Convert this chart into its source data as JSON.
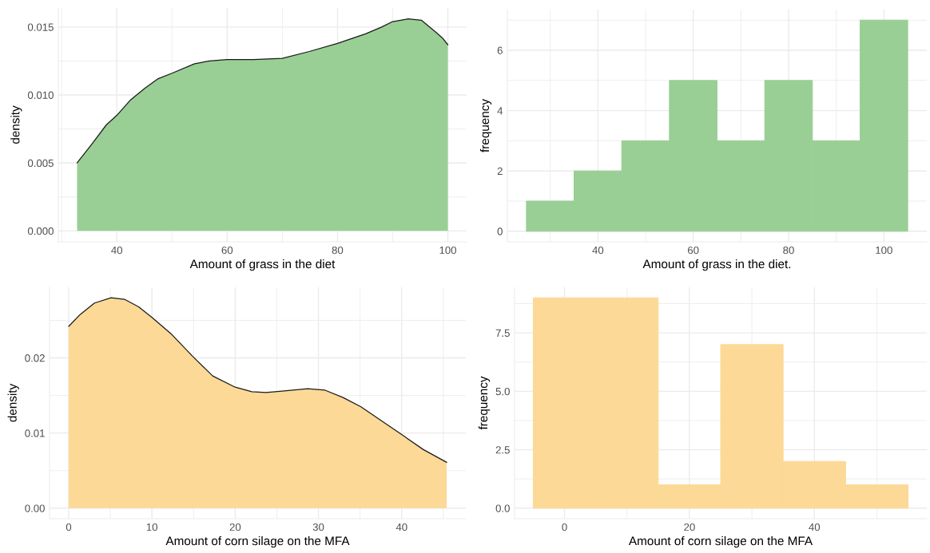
{
  "chart_data": [
    {
      "type": "area",
      "xlabel": "Amount of grass in the diet",
      "ylabel": "density",
      "color": "#99cf95",
      "x": [
        32.8,
        35.5,
        38.1,
        40,
        42.4,
        45.1,
        47.5,
        50,
        54.1,
        56.8,
        60,
        64.8,
        70,
        74.9,
        80,
        85.1,
        88,
        90,
        92.8,
        95.2,
        97.9,
        99,
        100
      ],
      "values": [
        0.005,
        0.0064,
        0.0078,
        0.0085,
        0.0096,
        0.0105,
        0.0112,
        0.0116,
        0.0123,
        0.0125,
        0.0126,
        0.0126,
        0.0127,
        0.0132,
        0.0138,
        0.0145,
        0.015,
        0.0154,
        0.0156,
        0.0155,
        0.0146,
        0.0142,
        0.0137
      ],
      "xlim": [
        29.4,
        103.4
      ],
      "ylim": [
        -0.0008,
        0.0164
      ],
      "xticks": [
        {
          "value": 30,
          "label": null
        },
        40,
        {
          "value": 50,
          "label": null
        },
        60,
        {
          "value": 70,
          "label": null
        },
        80,
        {
          "value": 90,
          "label": null
        },
        100
      ],
      "yticks": [
        {
          "value": 0,
          "label": "0.000"
        },
        {
          "value": 0.0025,
          "label": null
        },
        {
          "value": 0.005,
          "label": "0.005"
        },
        {
          "value": 0.0075,
          "label": null
        },
        {
          "value": 0.01,
          "label": "0.010"
        },
        {
          "value": 0.0125,
          "label": null
        },
        {
          "value": 0.015,
          "label": "0.015"
        }
      ],
      "grid": true
    },
    {
      "type": "histogram",
      "xlabel": "Amount of grass in the diet.",
      "ylabel": "frequency",
      "color": "#99cf95",
      "bins": [
        25,
        35,
        45,
        55,
        65,
        75,
        85,
        95,
        105
      ],
      "values": [
        1,
        2,
        3,
        5,
        3,
        5,
        3,
        7
      ],
      "xlim": [
        21,
        109
      ],
      "ylim": [
        -0.35,
        7.35
      ],
      "xticks": [
        {
          "value": 30,
          "label": null
        },
        40,
        {
          "value": 50,
          "label": null
        },
        60,
        {
          "value": 70,
          "label": null
        },
        80,
        {
          "value": 90,
          "label": null
        },
        100
      ],
      "yticks": [
        0,
        {
          "value": 1,
          "label": null
        },
        2,
        {
          "value": 3,
          "label": null
        },
        4,
        {
          "value": 5,
          "label": null
        },
        6,
        {
          "value": 7,
          "label": null
        }
      ],
      "grid": true
    },
    {
      "type": "area",
      "xlabel": "Amount of corn silage on the MFA",
      "ylabel": "density",
      "color": "#fcd996",
      "x": [
        0,
        1.4,
        3.1,
        5.1,
        6.7,
        8.4,
        10,
        12.4,
        14.9,
        17.3,
        20,
        22,
        23.7,
        25.9,
        28.7,
        30.8,
        33,
        35.1,
        37.6,
        40,
        42.6,
        45.4
      ],
      "values": [
        0.0242,
        0.0258,
        0.0273,
        0.028,
        0.0278,
        0.0268,
        0.0254,
        0.0231,
        0.0202,
        0.0176,
        0.0161,
        0.0155,
        0.0154,
        0.0156,
        0.0159,
        0.0157,
        0.0147,
        0.0135,
        0.0116,
        0.0098,
        0.0078,
        0.0061
      ],
      "xlim": [
        -2.3,
        47.7
      ],
      "ylim": [
        -0.0014,
        0.0294
      ],
      "xticks": [
        0,
        {
          "value": 5,
          "label": null
        },
        10,
        {
          "value": 15,
          "label": null
        },
        20,
        {
          "value": 25,
          "label": null
        },
        30,
        {
          "value": 35,
          "label": null
        },
        40,
        {
          "value": 45,
          "label": null
        }
      ],
      "yticks": [
        {
          "value": 0,
          "label": "0.00"
        },
        {
          "value": 0.005,
          "label": null
        },
        {
          "value": 0.01,
          "label": "0.01"
        },
        {
          "value": 0.015,
          "label": null
        },
        {
          "value": 0.02,
          "label": "0.02"
        },
        {
          "value": 0.025,
          "label": null
        }
      ],
      "grid": true
    },
    {
      "type": "histogram",
      "xlabel": "Amount of corn silage on the MFA",
      "ylabel": "frequency",
      "color": "#fcd996",
      "bins": [
        -5,
        5,
        15,
        25,
        35,
        45,
        55
      ],
      "values": [
        9,
        9,
        1,
        7,
        2,
        1
      ],
      "xlim": [
        -8,
        58
      ],
      "ylim": [
        -0.45,
        9.45
      ],
      "xticks": [
        0,
        {
          "value": 10,
          "label": null
        },
        20,
        {
          "value": 30,
          "label": null
        },
        40,
        {
          "value": 50,
          "label": null
        }
      ],
      "yticks": [
        {
          "value": 0,
          "label": "0.0"
        },
        {
          "value": 1.25,
          "label": null
        },
        {
          "value": 2.5,
          "label": "2.5"
        },
        {
          "value": 3.75,
          "label": null
        },
        {
          "value": 5,
          "label": "5.0"
        },
        {
          "value": 6.25,
          "label": null
        },
        {
          "value": 7.5,
          "label": "7.5"
        },
        {
          "value": 8.75,
          "label": null
        }
      ],
      "grid": true
    }
  ]
}
